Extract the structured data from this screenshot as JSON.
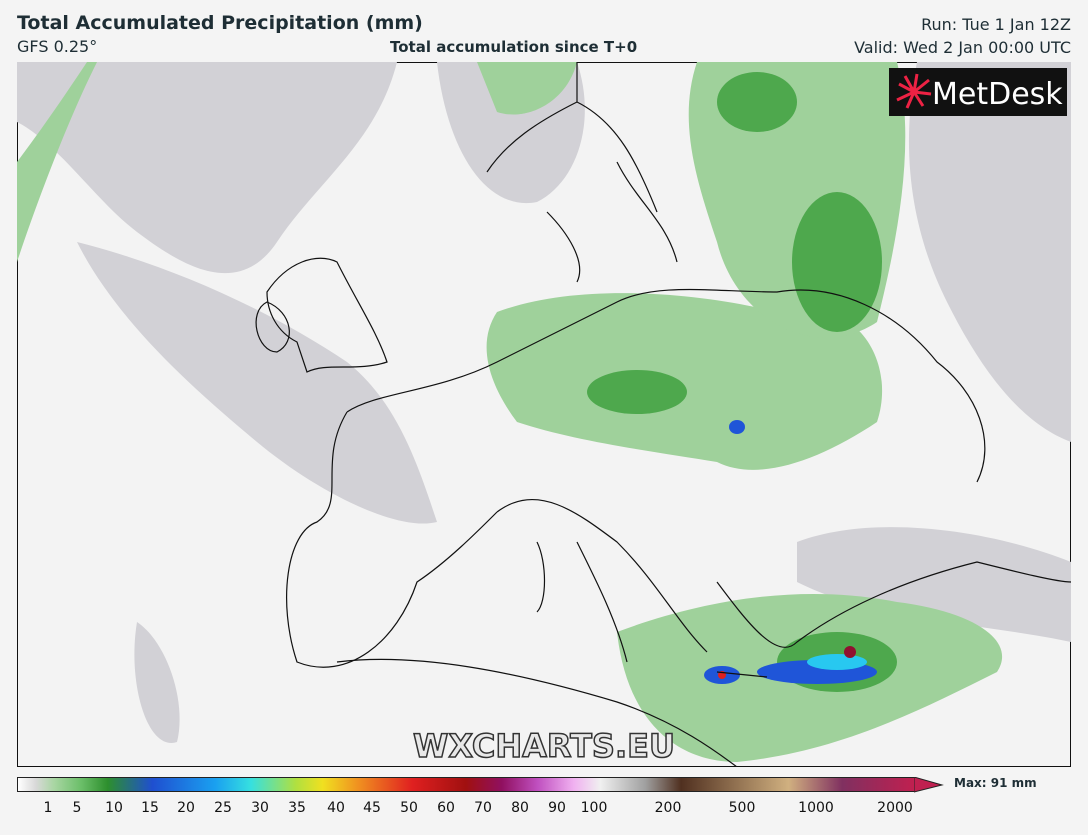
{
  "header": {
    "title": "Total Accumulated Precipitation (mm)",
    "model": "GFS 0.25°",
    "subtitle": "Total accumulation since T+0",
    "run": "Run: Tue 1 Jan 12Z",
    "valid": "Valid: Wed 2 Jan 00:00 UTC"
  },
  "map": {
    "logo": "MetDesk",
    "watermark": "WXCHARTS.EU"
  },
  "legend": {
    "ticks": [
      "1",
      "5",
      "10",
      "15",
      "20",
      "25",
      "30",
      "35",
      "40",
      "45",
      "50",
      "60",
      "70",
      "80",
      "90",
      "100",
      "200",
      "500",
      "1000",
      "2000"
    ],
    "max": "Max: 91 mm"
  }
}
